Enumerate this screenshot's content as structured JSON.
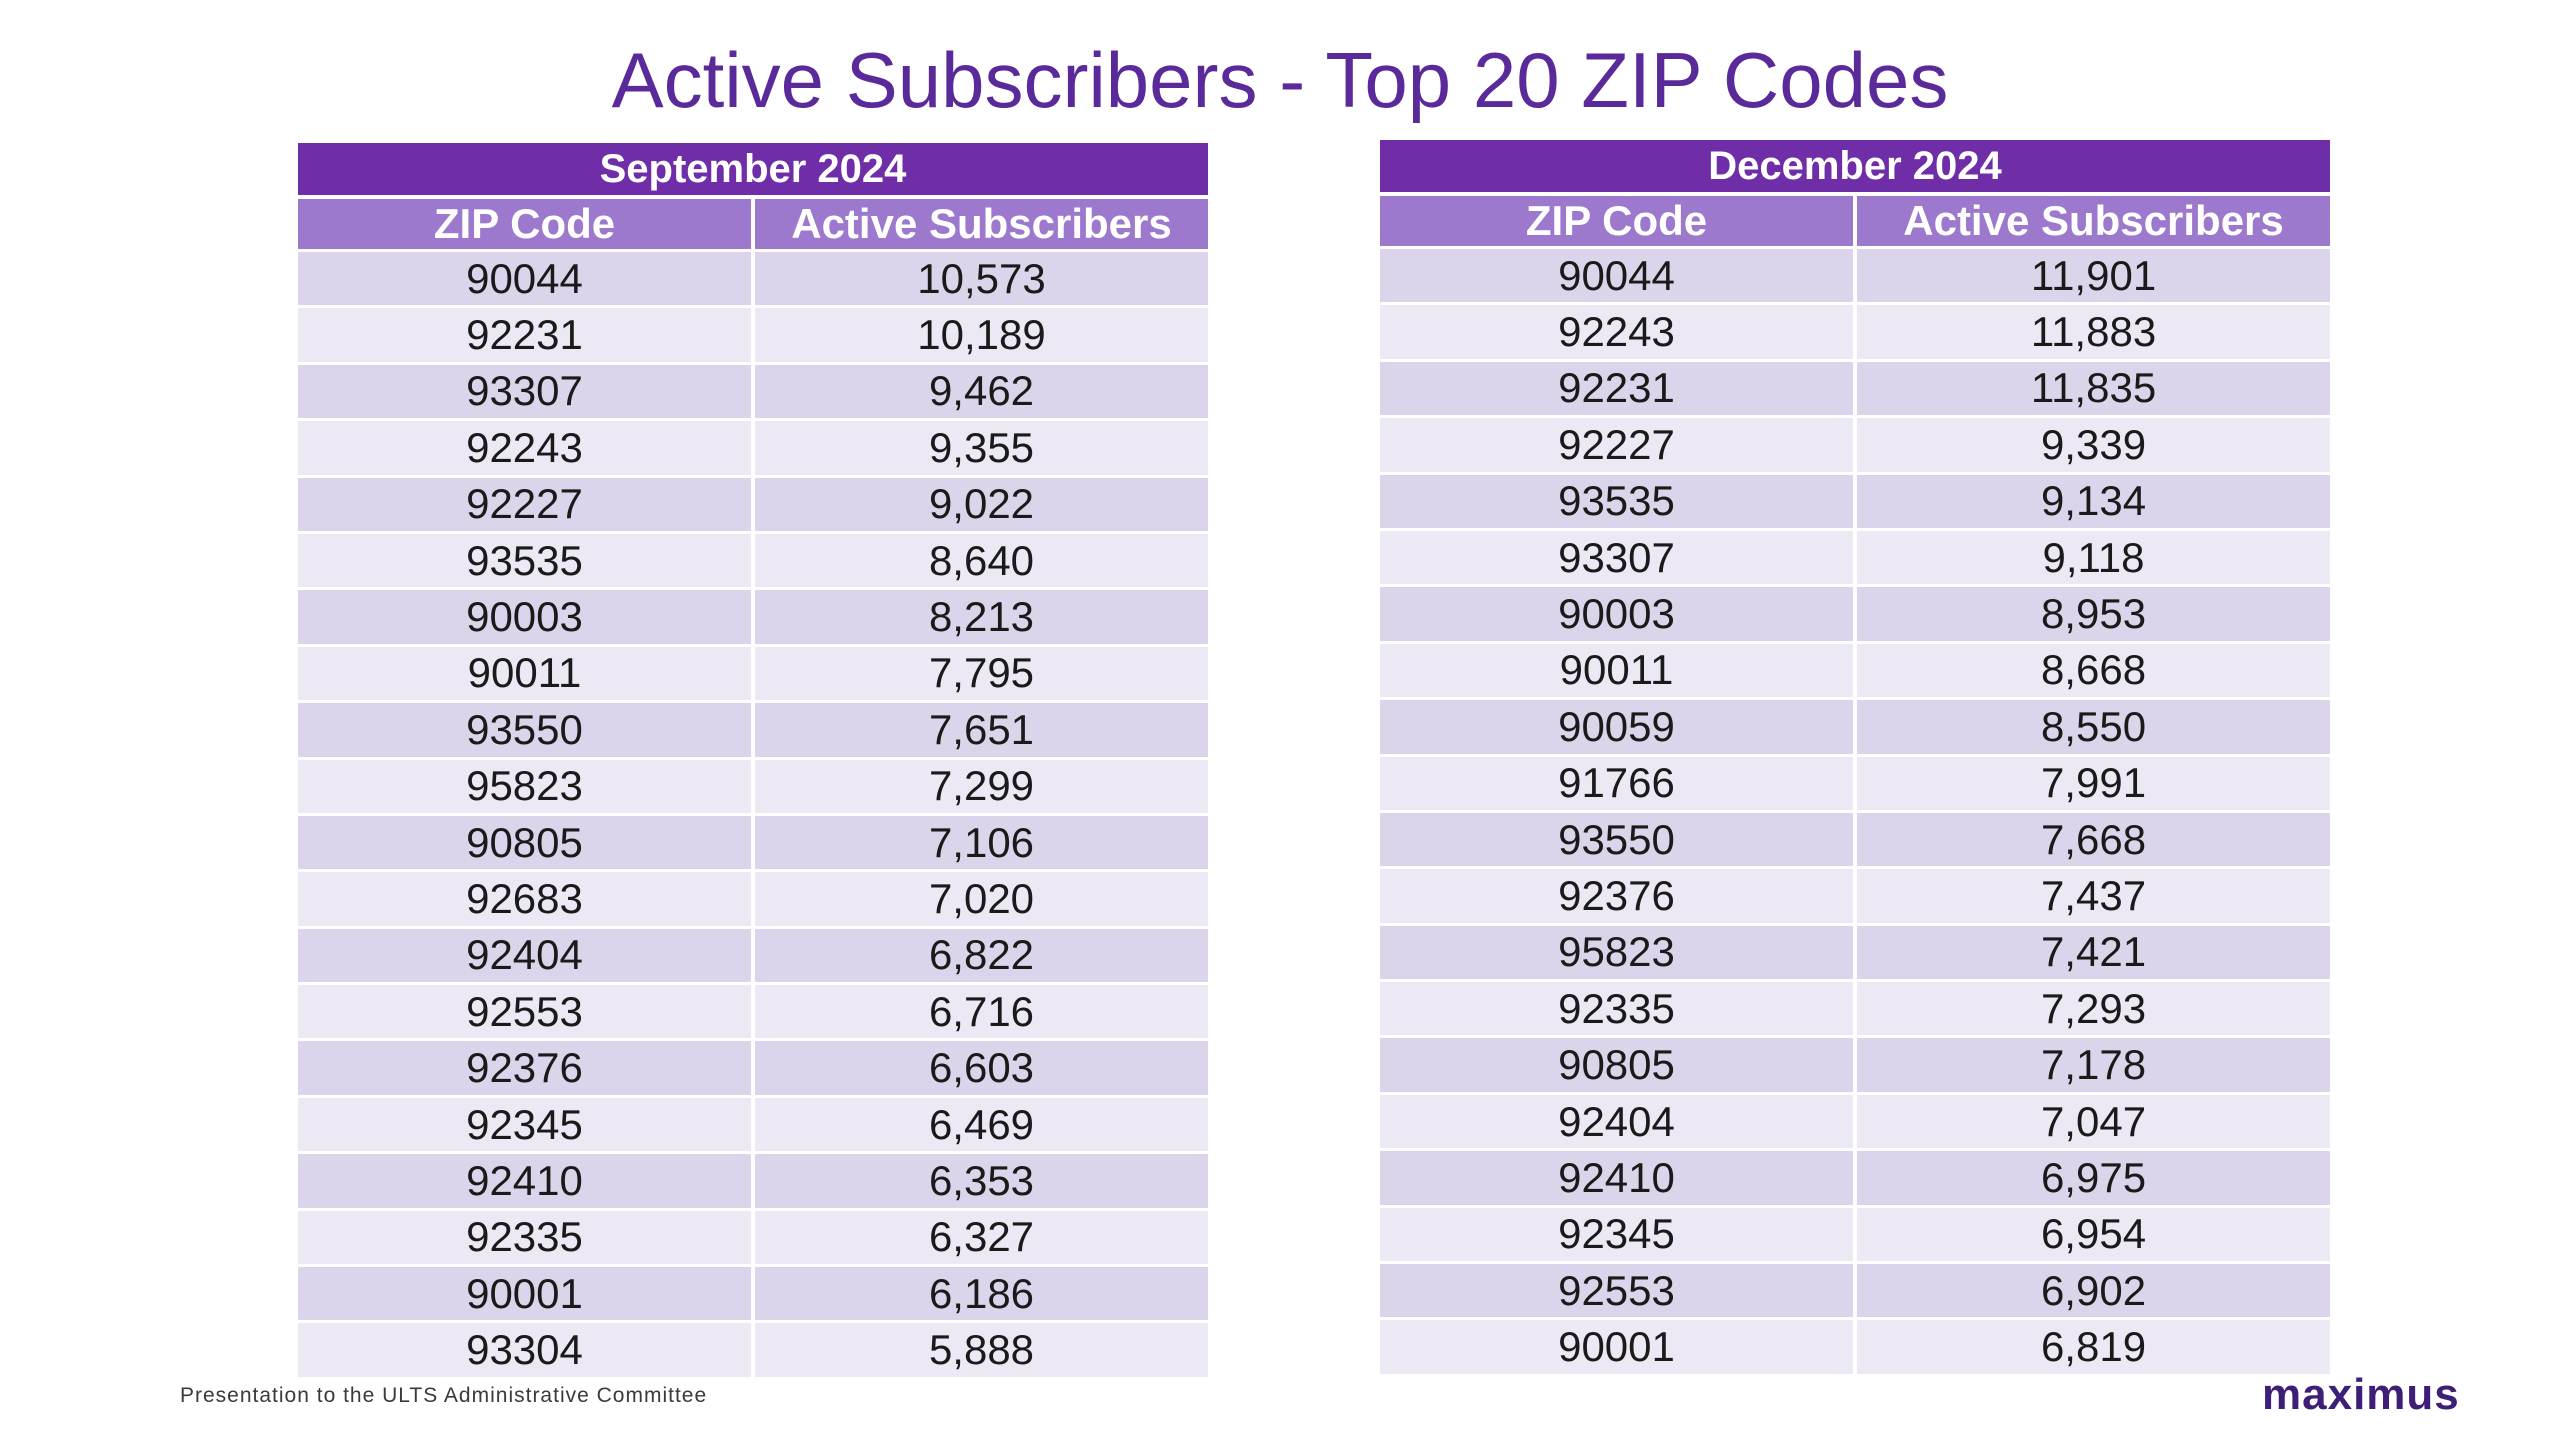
{
  "title": "Active Subscribers - Top 20 ZIP Codes",
  "footer": "Presentation to the ULTS Administrative Committee",
  "logo_text": "maximus",
  "colors": {
    "title": "#5b2a9a",
    "header_dark": "#6f2da8",
    "header_light": "#9c79cc",
    "row_odd": "#dcd4ea",
    "row_even": "#ede9f4",
    "logo": "#3d1f78"
  },
  "tables": [
    {
      "period": "September 2024",
      "col_zip": "ZIP Code",
      "col_subs": "Active Subscribers",
      "rows": [
        {
          "zip": "90044",
          "subs": "10,573"
        },
        {
          "zip": "92231",
          "subs": "10,189"
        },
        {
          "zip": "93307",
          "subs": "9,462"
        },
        {
          "zip": "92243",
          "subs": "9,355"
        },
        {
          "zip": "92227",
          "subs": "9,022"
        },
        {
          "zip": "93535",
          "subs": "8,640"
        },
        {
          "zip": "90003",
          "subs": "8,213"
        },
        {
          "zip": "90011",
          "subs": "7,795"
        },
        {
          "zip": "93550",
          "subs": "7,651"
        },
        {
          "zip": "95823",
          "subs": "7,299"
        },
        {
          "zip": "90805",
          "subs": "7,106"
        },
        {
          "zip": "92683",
          "subs": "7,020"
        },
        {
          "zip": "92404",
          "subs": "6,822"
        },
        {
          "zip": "92553",
          "subs": "6,716"
        },
        {
          "zip": "92376",
          "subs": "6,603"
        },
        {
          "zip": "92345",
          "subs": "6,469"
        },
        {
          "zip": "92410",
          "subs": "6,353"
        },
        {
          "zip": "92335",
          "subs": "6,327"
        },
        {
          "zip": "90001",
          "subs": "6,186"
        },
        {
          "zip": "93304",
          "subs": "5,888"
        }
      ]
    },
    {
      "period": "December 2024",
      "col_zip": "ZIP Code",
      "col_subs": "Active Subscribers",
      "rows": [
        {
          "zip": "90044",
          "subs": "11,901"
        },
        {
          "zip": "92243",
          "subs": "11,883"
        },
        {
          "zip": "92231",
          "subs": "11,835"
        },
        {
          "zip": "92227",
          "subs": "9,339"
        },
        {
          "zip": "93535",
          "subs": "9,134"
        },
        {
          "zip": "93307",
          "subs": "9,118"
        },
        {
          "zip": "90003",
          "subs": "8,953"
        },
        {
          "zip": "90011",
          "subs": "8,668"
        },
        {
          "zip": "90059",
          "subs": "8,550"
        },
        {
          "zip": "91766",
          "subs": "7,991"
        },
        {
          "zip": "93550",
          "subs": "7,668"
        },
        {
          "zip": "92376",
          "subs": "7,437"
        },
        {
          "zip": "95823",
          "subs": "7,421"
        },
        {
          "zip": "92335",
          "subs": "7,293"
        },
        {
          "zip": "90805",
          "subs": "7,178"
        },
        {
          "zip": "92404",
          "subs": "7,047"
        },
        {
          "zip": "92410",
          "subs": "6,975"
        },
        {
          "zip": "92345",
          "subs": "6,954"
        },
        {
          "zip": "92553",
          "subs": "6,902"
        },
        {
          "zip": "90001",
          "subs": "6,819"
        }
      ]
    }
  ]
}
